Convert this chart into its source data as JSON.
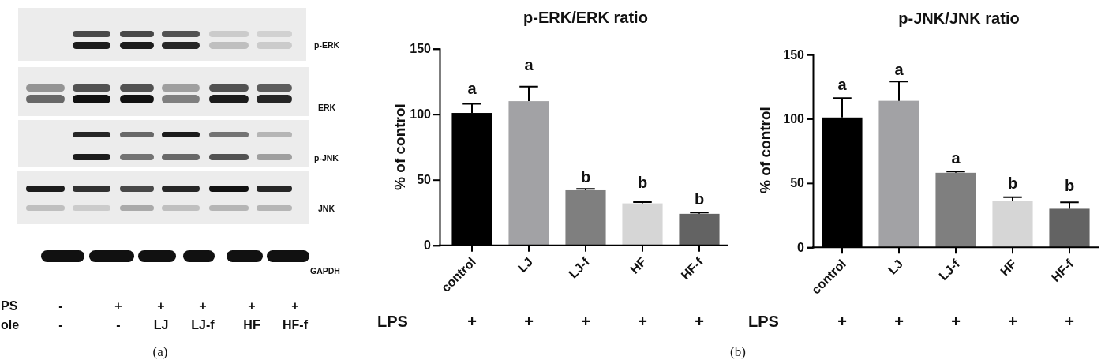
{
  "chart_data": [
    {
      "type": "other",
      "annotations": [
        "p-ERK",
        "ERK",
        "p-JNK",
        "JNK",
        "GAPDH",
        "PS",
        "ole",
        "-",
        "+",
        "+",
        "+",
        "+",
        "+",
        "-",
        "-",
        "LJ",
        "LJ-f",
        "HF",
        "HF-f",
        "(a)"
      ]
    },
    {
      "type": "bar",
      "title": "p-ERK/ERK ratio",
      "ylabel": "% of control",
      "categories": [
        "control",
        "LJ",
        "LJ-f",
        "HF",
        "HF-f"
      ],
      "values": [
        101,
        110,
        42,
        32,
        24
      ],
      "errors": [
        7,
        11,
        1,
        1,
        1
      ],
      "colors": [
        "#000000",
        "#a2a2a5",
        "#7f7f7f",
        "#d6d6d6",
        "#636363"
      ],
      "ylim": [
        0,
        150
      ],
      "yticks": [
        0,
        50,
        100,
        150
      ],
      "annotations": [
        "a",
        "a",
        "b",
        "b",
        "b",
        "LPS",
        "+",
        "+",
        "+",
        "+",
        "+",
        "(b)"
      ]
    },
    {
      "type": "bar",
      "title": "p-JNK/JNK ratio",
      "ylabel": "% of control",
      "categories": [
        "control",
        "LJ",
        "LJ-f",
        "HF",
        "HF-f"
      ],
      "values": [
        101,
        114,
        58,
        36,
        30
      ],
      "errors": [
        15,
        15,
        1,
        3,
        5
      ],
      "colors": [
        "#000000",
        "#a2a2a5",
        "#7f7f7f",
        "#d6d6d6",
        "#636363"
      ],
      "ylim": [
        0,
        150
      ],
      "yticks": [
        0,
        50,
        100,
        150
      ],
      "annotations": [
        "a",
        "a",
        "a",
        "b",
        "b",
        "LPS",
        "+",
        "+",
        "+",
        "+",
        "+"
      ]
    }
  ]
}
